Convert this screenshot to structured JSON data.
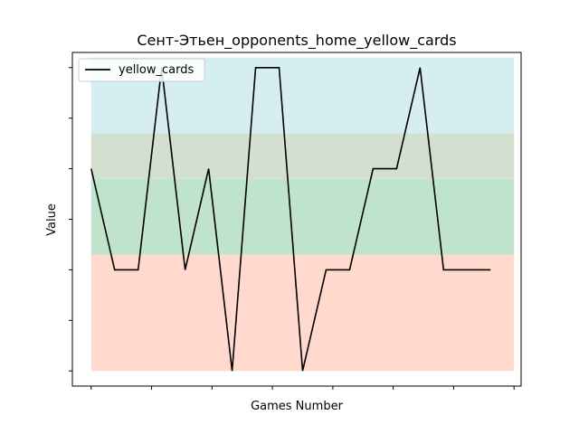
{
  "chart_data": {
    "type": "line",
    "title": "Сент-Этьен_opponents_home_yellow_cards",
    "xlabel": "Games Number",
    "ylabel": "Value",
    "x": [
      0,
      1,
      2,
      3,
      4,
      5,
      6,
      7,
      8,
      9,
      10,
      11,
      12,
      13,
      14,
      15,
      16,
      17
    ],
    "xlim": [
      -0.8,
      18.3
    ],
    "ylim": [
      -0.3,
      6.3
    ],
    "x_ticks_count": 8,
    "y_ticks_count": 7,
    "tick_labels_shown": false,
    "grid": false,
    "legend_position": "top-left",
    "bands": [
      {
        "from": 0,
        "to": 2.3,
        "color": "#FFDACC"
      },
      {
        "from": 2.3,
        "to": 3.8,
        "color": "#BFE4CB"
      },
      {
        "from": 3.8,
        "to": 4.7,
        "color": "#D3E0CF"
      },
      {
        "from": 4.7,
        "to": 6.2,
        "color": "#D5EEF2"
      }
    ],
    "series": [
      {
        "name": "yellow_cards",
        "color": "#000000",
        "values": [
          4,
          2,
          2,
          6,
          2,
          4,
          0,
          6,
          6,
          0,
          2,
          2,
          4,
          4,
          6,
          2,
          2,
          2
        ]
      }
    ]
  }
}
